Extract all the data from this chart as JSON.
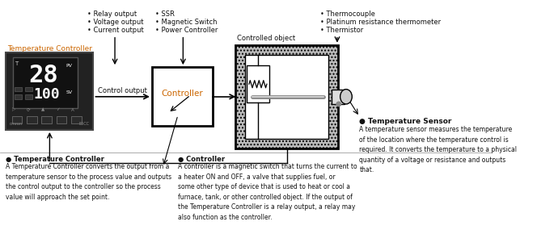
{
  "bg_color": "#ffffff",
  "line_color": "#000000",
  "tc_orange": "#cc6600",
  "tc_blue": "#0000aa",
  "tc_black": "#111111",
  "bullets_left": [
    "• Relay output",
    "• Voltage output",
    "• Current output"
  ],
  "bullets_mid": [
    "• SSR",
    "• Magnetic Switch",
    "• Power Controller"
  ],
  "bullets_right": [
    "• Thermocouple",
    "• Platinum resistance thermometer",
    "• Thermistor"
  ],
  "label_temp_ctrl": "Temperature Controller",
  "label_control_output": "Control output",
  "label_controller": "Controller",
  "label_controlled_obj": "Controlled object",
  "label_ts_title": "● Temperature Sensor",
  "label_ts_body": "A temperature sensor measures the temperature\nof the location where the temperature control is\nrequired. It converts the temperature to a physical\nquantity of a voltage or resistance and outputs\nthat.",
  "label_tc_title": "● Temperature Controller",
  "label_tc_body": "A Temperature Controller converts the output from a\ntemperature sensor to the process value and outputs\nthe control output to the controller so the process\nvalue will approach the set point.",
  "label_ctrl_title": "● Controller",
  "label_ctrl_body": "A controller is a magnetic switch that turns the current to\na heater ON and OFF, a valve that supplies fuel, or\nsome other type of device that is used to heat or cool a\nfurnace, tank, or other controlled object. If the output of\nthe Temperature Controller is a relay output, a relay may\nalso function as the controller."
}
